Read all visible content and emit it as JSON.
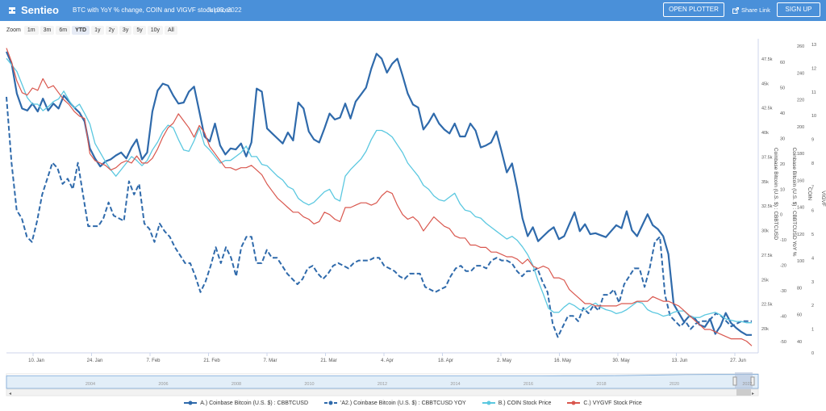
{
  "header": {
    "logo_text": "Sentieo",
    "title": "BTC with YoY % change, COIN and VIGVF stock prices",
    "date": "Jul 03, 2022",
    "open_plotter": "OPEN PLOTTER",
    "share_link": "Share Link",
    "sign_up": "SIGN UP",
    "bg_color": "#4a90d9"
  },
  "zoom": {
    "label": "Zoom",
    "options": [
      "1m",
      "3m",
      "6m",
      "YTD",
      "1y",
      "2y",
      "3y",
      "5y",
      "10y",
      "All"
    ],
    "active": "YTD"
  },
  "navigator": {
    "years": [
      "2004",
      "2006",
      "2008",
      "2010",
      "2012",
      "2014",
      "2016",
      "2018",
      "2020",
      "2022"
    ]
  },
  "chart_data": {
    "type": "line",
    "x_tick_labels": [
      "10. Jan",
      "24. Jan",
      "7. Feb",
      "21. Feb",
      "7. Mar",
      "21. Mar",
      "4. Apr",
      "18. Apr",
      "2. May",
      "16. May",
      "30. May",
      "13. Jun",
      "27. Jun"
    ],
    "axes": [
      {
        "id": "btc",
        "label": "Coinbase Bitcoin (U.S. $) : CBBTCUSD",
        "ticks": [
          "47.5k",
          "45k",
          "42.5k",
          "40k",
          "37.5k",
          "35k",
          "32.5k",
          "30k",
          "27.5k",
          "25k",
          "22.5k",
          "20k"
        ],
        "min": 17500,
        "max": 49000
      },
      {
        "id": "yoy",
        "label": "Coinbase Bitcoin (U.S. $) : CBBTCUSD YoY %",
        "ticks": [
          "60",
          "50",
          "40",
          "30",
          "20",
          "10",
          "0",
          "-10",
          "-20",
          "-30",
          "-40",
          "-50"
        ],
        "min": -52,
        "max": 67
      },
      {
        "id": "coin",
        "label": "COIN",
        "ticks": [
          "260",
          "240",
          "220",
          "200",
          "180",
          "160",
          "140",
          "120",
          "100",
          "80",
          "60",
          "40"
        ],
        "min": 25,
        "max": 265
      },
      {
        "id": "vigvf",
        "label": "VIGVF",
        "ticks": [
          "13",
          "12",
          "11",
          "10",
          "9",
          "8",
          "7",
          "6",
          "5",
          "4",
          "3",
          "2",
          "1",
          "0"
        ],
        "min": 0,
        "max": 13.4
      }
    ],
    "series": [
      {
        "name": "A.) Coinbase Bitcoin (U.S. $) : CBBTCUSD",
        "axis": "btc",
        "color": "#2f6aab",
        "dash": "",
        "width": 2.2,
        "sym": "line",
        "values": [
          47700,
          46500,
          43500,
          42000,
          41800,
          42500,
          41700,
          43000,
          41800,
          42500,
          42000,
          43300,
          42700,
          42100,
          41600,
          40700,
          38000,
          37000,
          36200,
          36700,
          36900,
          37300,
          37600,
          37000,
          38100,
          38900,
          36900,
          37600,
          41700,
          43800,
          44500,
          44300,
          43300,
          42500,
          42600,
          43700,
          44200,
          41700,
          39200,
          38700,
          40500,
          38300,
          37400,
          38000,
          37900,
          38500,
          37200,
          38600,
          44000,
          43700,
          40000,
          39500,
          39000,
          38500,
          39600,
          38800,
          42600,
          42000,
          39700,
          38900,
          38600,
          40000,
          41500,
          40900,
          41100,
          42500,
          41000,
          42700,
          43400,
          44100,
          46000,
          47500,
          47000,
          45600,
          46500,
          47000,
          45300,
          43500,
          42400,
          42100,
          39900,
          40600,
          41500,
          40500,
          39900,
          39500,
          40500,
          39200,
          39200,
          40500,
          39800,
          38100,
          38300,
          38600,
          39700,
          37700,
          35600,
          36500,
          34000,
          31000,
          29200,
          30100,
          28700,
          29200,
          29700,
          30100,
          28900,
          29200,
          30400,
          31600,
          29700,
          30400,
          29400,
          29500,
          29300,
          29100,
          29700,
          30300,
          30000,
          31700,
          29800,
          29200,
          30300,
          31400,
          30300,
          29900,
          29200,
          27400,
          22400,
          21500,
          20600,
          21200,
          21000,
          20300,
          20100,
          20900,
          19400,
          20200,
          21500,
          20500,
          20000,
          19600,
          19300,
          19300
        ]
      },
      {
        "name": "'A2.) Coinbase Bitcoin (U.S. $) : CBBTCUSD YOY",
        "axis": "yoy",
        "color": "#2f6aab",
        "dash": "6,3",
        "width": 2.0,
        "sym": "dash",
        "values": [
          45,
          20,
          2,
          -1,
          -8,
          -10,
          -2,
          8,
          14,
          20,
          18,
          12,
          14,
          10,
          20,
          8,
          -4,
          -4,
          -4,
          -1,
          5,
          0,
          -1,
          -2,
          13,
          8,
          12,
          -3,
          -5,
          -10,
          -3,
          -6,
          -8,
          -12,
          -15,
          -18,
          -18,
          -23,
          -29,
          -25,
          -19,
          -12,
          -18,
          -12,
          -16,
          -23,
          -12,
          -8,
          -8,
          -18,
          -18,
          -13,
          -16,
          -16,
          -19,
          -22,
          -24,
          -26,
          -24,
          -20,
          -19,
          -22,
          -24,
          -22,
          -19,
          -18,
          -19,
          -20,
          -18,
          -17,
          -17,
          -17,
          -16,
          -16,
          -19,
          -20,
          -21,
          -23,
          -24,
          -22,
          -22,
          -22,
          -27,
          -28,
          -29,
          -28,
          -27,
          -23,
          -20,
          -19,
          -21,
          -21,
          -19,
          -19,
          -20,
          -17,
          -16,
          -17,
          -17,
          -18,
          -21,
          -23,
          -21,
          -21,
          -20,
          -25,
          -29,
          -41,
          -46,
          -42,
          -38,
          -38,
          -40,
          -35,
          -37,
          -34,
          -36,
          -30,
          -30,
          -28,
          -33,
          -26,
          -23,
          -20,
          -20,
          -27,
          -20,
          -10,
          -8,
          -30,
          -38,
          -40,
          -42,
          -40,
          -43,
          -41,
          -40,
          -40,
          -39,
          -37,
          -38,
          -40,
          -42,
          -41,
          -40,
          -40,
          -40
        ]
      },
      {
        "name": "B.) COIN Stock Price",
        "axis": "coin",
        "color": "#5bc8e0",
        "dash": "",
        "width": 1.3,
        "sym": "line",
        "values": [
          250,
          245,
          240,
          230,
          220,
          215,
          215,
          210,
          213,
          217,
          219,
          225,
          218,
          212,
          215,
          208,
          200,
          185,
          178,
          171,
          165,
          160,
          165,
          170,
          175,
          172,
          168,
          172,
          180,
          186,
          194,
          199,
          197,
          188,
          180,
          179,
          187,
          197,
          184,
          180,
          175,
          170,
          172,
          172,
          175,
          178,
          183,
          175,
          175,
          169,
          168,
          164,
          160,
          157,
          152,
          150,
          143,
          140,
          138,
          140,
          144,
          148,
          150,
          143,
          141,
          160,
          165,
          169,
          173,
          179,
          188,
          195,
          195,
          193,
          190,
          184,
          178,
          170,
          165,
          160,
          153,
          150,
          145,
          142,
          141,
          144,
          147,
          139,
          134,
          133,
          129,
          128,
          124,
          121,
          118,
          115,
          112,
          114,
          111,
          106,
          100,
          92,
          80,
          70,
          59,
          56,
          56,
          60,
          63,
          61,
          58,
          58,
          61,
          63,
          60,
          58,
          57,
          55,
          56,
          58,
          61,
          64,
          63,
          58,
          56,
          55,
          53,
          54,
          56,
          57,
          57,
          53,
          52,
          52,
          54,
          55,
          56,
          54,
          51,
          50,
          49,
          49,
          48,
          48
        ]
      },
      {
        "name": "C.) VYGVF Stock Price",
        "axis": "vigvf",
        "color": "#d9574e",
        "dash": "",
        "width": 1.2,
        "sym": "line",
        "values": [
          13.0,
          12.4,
          11.6,
          11.1,
          11.0,
          11.3,
          11.2,
          11.7,
          11.3,
          11.4,
          11.1,
          10.8,
          10.6,
          10.3,
          10.1,
          10.0,
          8.5,
          8.2,
          8.1,
          8.0,
          7.8,
          7.9,
          8.1,
          8.2,
          8.1,
          8.4,
          8.1,
          8.1,
          8.3,
          8.7,
          9.2,
          9.6,
          9.8,
          10.2,
          9.9,
          9.6,
          9.2,
          9.7,
          9.4,
          8.8,
          8.5,
          8.2,
          7.9,
          7.9,
          7.8,
          7.9,
          7.9,
          8.0,
          7.8,
          7.6,
          7.2,
          6.9,
          6.6,
          6.4,
          6.2,
          6.0,
          6.0,
          5.8,
          5.7,
          5.5,
          5.6,
          6.0,
          5.9,
          5.7,
          5.6,
          6.2,
          6.2,
          6.3,
          6.4,
          6.4,
          6.3,
          6.4,
          6.7,
          6.9,
          6.8,
          6.3,
          5.9,
          5.7,
          5.8,
          5.6,
          5.2,
          5.5,
          5.8,
          5.6,
          5.4,
          5.3,
          5.0,
          4.9,
          4.9,
          4.6,
          4.6,
          4.5,
          4.5,
          4.3,
          4.3,
          4.2,
          4.1,
          4.1,
          4.0,
          3.8,
          4.0,
          3.7,
          3.6,
          3.7,
          3.6,
          3.2,
          3.2,
          3.1,
          2.7,
          2.5,
          2.3,
          2.1,
          2.1,
          2.0,
          2.0,
          2.0,
          2.0,
          2.0,
          2.1,
          2.1,
          2.1,
          2.2,
          2.2,
          2.2,
          2.4,
          2.3,
          2.2,
          2.2,
          2.1,
          2.0,
          1.8,
          1.6,
          1.4,
          1.2,
          1.0,
          1.0,
          0.9,
          0.8,
          0.7,
          0.6,
          0.6,
          0.6,
          0.5,
          0.3
        ]
      }
    ],
    "navigator_values": [
      0.86,
      0.86,
      0.86,
      0.86,
      0.86,
      0.86,
      0.86,
      0.86,
      0.86,
      0.86,
      0.86,
      0.86,
      0.86,
      0.86,
      0.86,
      0.86,
      0.86,
      0.86,
      0.86,
      0.86,
      0.86,
      0.86,
      0.86,
      0.87,
      0.87,
      0.88,
      0.9,
      0.93,
      0.95,
      0.96,
      0.96,
      0.97
    ],
    "grid": false,
    "legend_position": "bottom"
  }
}
